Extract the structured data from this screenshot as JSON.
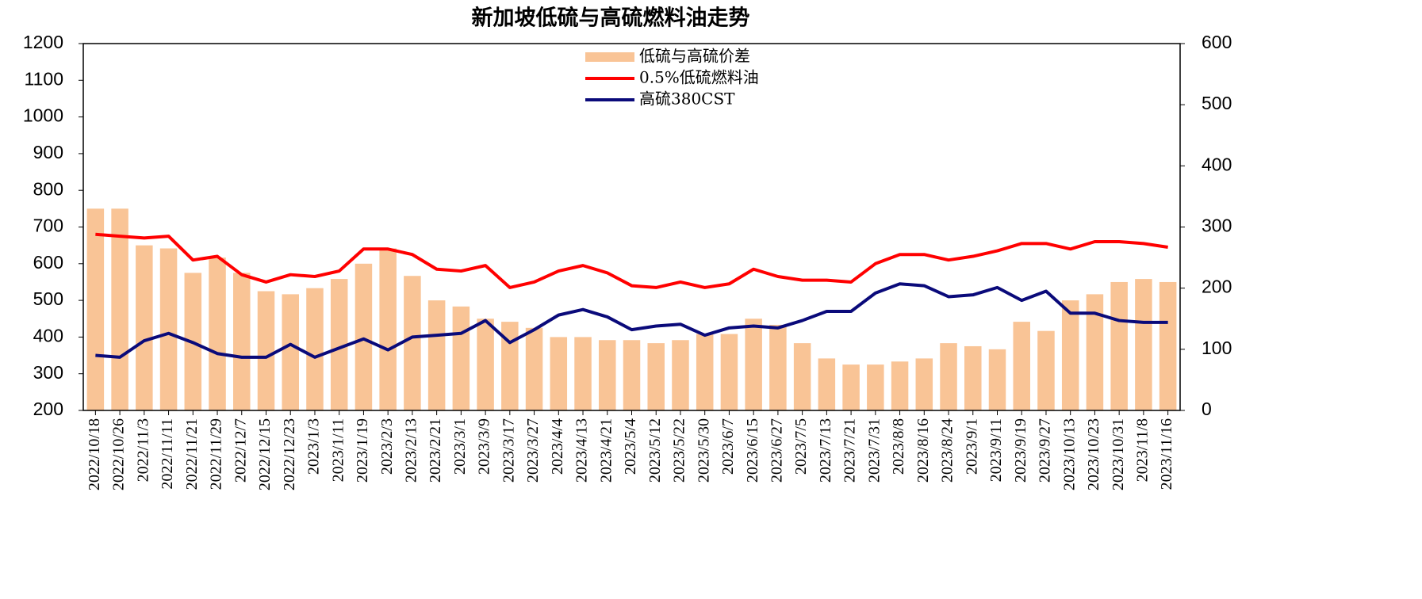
{
  "chart_data": {
    "type": "combo",
    "title": "新加坡低硫与高硫燃料油走势",
    "categories": [
      "2022/10/18",
      "2022/10/26",
      "2022/11/3",
      "2022/11/11",
      "2022/11/21",
      "2022/11/29",
      "2022/12/7",
      "2022/12/15",
      "2022/12/23",
      "2023/1/3",
      "2023/1/11",
      "2023/1/19",
      "2023/2/3",
      "2023/2/13",
      "2023/2/21",
      "2023/3/1",
      "2023/3/9",
      "2023/3/17",
      "2023/3/27",
      "2023/4/4",
      "2023/4/13",
      "2023/4/21",
      "2023/5/4",
      "2023/5/12",
      "2023/5/22",
      "2023/5/30",
      "2023/6/7",
      "2023/6/15",
      "2023/6/27",
      "2023/7/5",
      "2023/7/13",
      "2023/7/21",
      "2023/7/31",
      "2023/8/8",
      "2023/8/16",
      "2023/8/24",
      "2023/9/1",
      "2023/9/11",
      "2023/9/19",
      "2023/9/27",
      "2023/10/13",
      "2023/10/23",
      "2023/10/31",
      "2023/11/8",
      "2023/11/16"
    ],
    "series": [
      {
        "name": "低硫与高硫价差",
        "type": "bar",
        "axis": "y2",
        "color": "#f9c496",
        "values": [
          330,
          330,
          270,
          265,
          225,
          250,
          225,
          195,
          190,
          200,
          215,
          240,
          265,
          220,
          180,
          170,
          150,
          145,
          135,
          120,
          120,
          115,
          115,
          110,
          115,
          125,
          125,
          150,
          140,
          110,
          85,
          75,
          75,
          80,
          85,
          110,
          105,
          100,
          145,
          130,
          180,
          190,
          210,
          215,
          210
        ]
      },
      {
        "name": "0.5%低硫燃料油",
        "type": "line",
        "color": "#ff0000",
        "values": [
          680,
          675,
          670,
          675,
          610,
          620,
          570,
          550,
          570,
          565,
          580,
          640,
          640,
          625,
          585,
          580,
          595,
          535,
          550,
          580,
          595,
          575,
          540,
          535,
          550,
          535,
          545,
          585,
          565,
          555,
          555,
          550,
          600,
          625,
          625,
          610,
          620,
          635,
          655,
          655,
          640,
          660,
          660,
          655,
          645
        ]
      },
      {
        "name": "高硫380CST",
        "type": "line",
        "color": "#0a0a7a",
        "values": [
          350,
          345,
          390,
          410,
          385,
          355,
          345,
          345,
          380,
          345,
          370,
          395,
          365,
          400,
          405,
          410,
          445,
          385,
          420,
          460,
          475,
          455,
          420,
          430,
          435,
          405,
          425,
          430,
          425,
          445,
          470,
          470,
          520,
          545,
          540,
          510,
          515,
          535,
          500,
          525,
          465,
          465,
          445,
          440,
          440
        ]
      }
    ],
    "ylim": [
      200,
      1200
    ],
    "yticks": [
      200,
      300,
      400,
      500,
      600,
      700,
      800,
      900,
      1000,
      1100,
      1200
    ],
    "y2lim": [
      0,
      600
    ],
    "y2ticks": [
      0,
      100,
      200,
      300,
      400,
      500,
      600
    ]
  }
}
